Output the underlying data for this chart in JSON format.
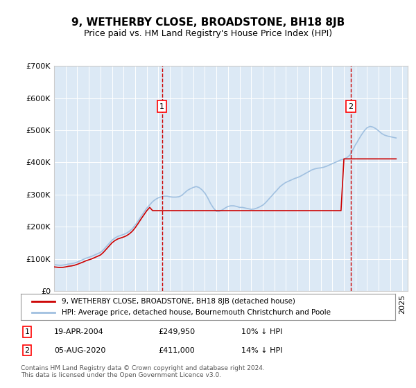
{
  "title": "9, WETHERBY CLOSE, BROADSTONE, BH18 8JB",
  "subtitle": "Price paid vs. HM Land Registry's House Price Index (HPI)",
  "ylabel_ticks": [
    "£0",
    "£100K",
    "£200K",
    "£300K",
    "£400K",
    "£500K",
    "£600K",
    "£700K"
  ],
  "ylim": [
    0,
    700000
  ],
  "yticks": [
    0,
    100000,
    200000,
    300000,
    400000,
    500000,
    600000,
    700000
  ],
  "xlim_start": 1995.0,
  "xlim_end": 2025.5,
  "bg_color": "#dce9f5",
  "plot_bg_color": "#dce9f5",
  "hpi_color": "#a0c0e0",
  "price_color": "#cc0000",
  "legend_label_price": "9, WETHERBY CLOSE, BROADSTONE, BH18 8JB (detached house)",
  "legend_label_hpi": "HPI: Average price, detached house, Bournemouth Christchurch and Poole",
  "sale1_x": 2004.3,
  "sale1_y": 249950,
  "sale1_label": "1",
  "sale1_date": "19-APR-2004",
  "sale1_price": "£249,950",
  "sale1_hpi": "10% ↓ HPI",
  "sale2_x": 2020.58,
  "sale2_y": 411000,
  "sale2_label": "2",
  "sale2_date": "05-AUG-2020",
  "sale2_price": "£411,000",
  "sale2_hpi": "14% ↓ HPI",
  "footer": "Contains HM Land Registry data © Crown copyright and database right 2024.\nThis data is licensed under the Open Government Licence v3.0.",
  "hpi_data_x": [
    1995.0,
    1995.25,
    1995.5,
    1995.75,
    1996.0,
    1996.25,
    1996.5,
    1996.75,
    1997.0,
    1997.25,
    1997.5,
    1997.75,
    1998.0,
    1998.25,
    1998.5,
    1998.75,
    1999.0,
    1999.25,
    1999.5,
    1999.75,
    2000.0,
    2000.25,
    2000.5,
    2000.75,
    2001.0,
    2001.25,
    2001.5,
    2001.75,
    2002.0,
    2002.25,
    2002.5,
    2002.75,
    2003.0,
    2003.25,
    2003.5,
    2003.75,
    2004.0,
    2004.25,
    2004.5,
    2004.75,
    2005.0,
    2005.25,
    2005.5,
    2005.75,
    2006.0,
    2006.25,
    2006.5,
    2006.75,
    2007.0,
    2007.25,
    2007.5,
    2007.75,
    2008.0,
    2008.25,
    2008.5,
    2008.75,
    2009.0,
    2009.25,
    2009.5,
    2009.75,
    2010.0,
    2010.25,
    2010.5,
    2010.75,
    2011.0,
    2011.25,
    2011.5,
    2011.75,
    2012.0,
    2012.25,
    2012.5,
    2012.75,
    2013.0,
    2013.25,
    2013.5,
    2013.75,
    2014.0,
    2014.25,
    2014.5,
    2014.75,
    2015.0,
    2015.25,
    2015.5,
    2015.75,
    2016.0,
    2016.25,
    2016.5,
    2016.75,
    2017.0,
    2017.25,
    2017.5,
    2017.75,
    2018.0,
    2018.25,
    2018.5,
    2018.75,
    2019.0,
    2019.25,
    2019.5,
    2019.75,
    2020.0,
    2020.25,
    2020.5,
    2020.75,
    2021.0,
    2021.25,
    2021.5,
    2021.75,
    2022.0,
    2022.25,
    2022.5,
    2022.75,
    2023.0,
    2023.25,
    2023.5,
    2023.75,
    2024.0,
    2024.25,
    2024.5
  ],
  "hpi_data_y": [
    82000,
    81000,
    80000,
    80500,
    82000,
    84000,
    85000,
    87000,
    90000,
    94000,
    98000,
    102000,
    105000,
    108000,
    112000,
    116000,
    120000,
    128000,
    138000,
    148000,
    158000,
    165000,
    170000,
    173000,
    176000,
    180000,
    186000,
    194000,
    205000,
    218000,
    232000,
    245000,
    258000,
    268000,
    278000,
    285000,
    290000,
    293000,
    295000,
    295000,
    293000,
    292000,
    292000,
    293000,
    297000,
    305000,
    313000,
    318000,
    322000,
    325000,
    322000,
    315000,
    305000,
    290000,
    272000,
    258000,
    248000,
    248000,
    252000,
    258000,
    263000,
    265000,
    265000,
    263000,
    260000,
    260000,
    258000,
    256000,
    254000,
    255000,
    258000,
    262000,
    267000,
    275000,
    285000,
    295000,
    305000,
    315000,
    325000,
    332000,
    338000,
    342000,
    346000,
    350000,
    353000,
    357000,
    362000,
    367000,
    372000,
    377000,
    380000,
    382000,
    383000,
    385000,
    388000,
    392000,
    396000,
    400000,
    404000,
    408000,
    410000,
    415000,
    422000,
    438000,
    455000,
    470000,
    485000,
    498000,
    508000,
    512000,
    510000,
    505000,
    498000,
    490000,
    485000,
    482000,
    480000,
    478000,
    476000
  ],
  "price_data_x": [
    1995.0,
    1995.25,
    1995.5,
    1995.75,
    1996.0,
    1996.25,
    1996.5,
    1996.75,
    1997.0,
    1997.25,
    1997.5,
    1997.75,
    1998.0,
    1998.25,
    1998.5,
    1998.75,
    1999.0,
    1999.25,
    1999.5,
    1999.75,
    2000.0,
    2000.25,
    2000.5,
    2000.75,
    2001.0,
    2001.25,
    2001.5,
    2001.75,
    2002.0,
    2002.25,
    2002.5,
    2002.75,
    2003.0,
    2003.25,
    2003.5,
    2003.75,
    2004.0,
    2004.25,
    2004.5,
    2004.75,
    2005.0,
    2005.25,
    2005.5,
    2005.75,
    2006.0,
    2006.25,
    2006.5,
    2006.75,
    2007.0,
    2007.25,
    2007.5,
    2007.75,
    2008.0,
    2008.25,
    2008.5,
    2008.75,
    2009.0,
    2009.25,
    2009.5,
    2009.75,
    2010.0,
    2010.25,
    2010.5,
    2010.75,
    2011.0,
    2011.25,
    2011.5,
    2011.75,
    2012.0,
    2012.25,
    2012.5,
    2012.75,
    2013.0,
    2013.25,
    2013.5,
    2013.75,
    2014.0,
    2014.25,
    2014.5,
    2014.75,
    2015.0,
    2015.25,
    2015.5,
    2015.75,
    2016.0,
    2016.25,
    2016.5,
    2016.75,
    2017.0,
    2017.25,
    2017.5,
    2017.75,
    2018.0,
    2018.25,
    2018.5,
    2018.75,
    2019.0,
    2019.25,
    2019.5,
    2019.75,
    2020.0,
    2020.25,
    2020.5,
    2020.75,
    2021.0,
    2021.25,
    2021.5,
    2021.75,
    2022.0,
    2022.25,
    2022.5,
    2022.75,
    2023.0,
    2023.25,
    2023.5,
    2023.75,
    2024.0,
    2024.25,
    2024.5
  ],
  "price_data_y": [
    75000,
    74000,
    73000,
    73500,
    75000,
    77000,
    78000,
    80000,
    83000,
    86500,
    90000,
    94000,
    97000,
    100000,
    104000,
    108000,
    112000,
    120000,
    130000,
    140000,
    150000,
    157000,
    162000,
    165000,
    168000,
    172000,
    178000,
    186000,
    197000,
    210000,
    224000,
    237000,
    250000,
    260000,
    249950,
    249950,
    249950,
    249950,
    249950,
    249950,
    249950,
    249950,
    249950,
    249950,
    249950,
    249950,
    249950,
    249950,
    249950,
    249950,
    249950,
    249950,
    249950,
    249950,
    249950,
    249950,
    249950,
    249950,
    249950,
    249950,
    249950,
    249950,
    249950,
    249950,
    249950,
    249950,
    249950,
    249950,
    249950,
    249950,
    249950,
    249950,
    249950,
    249950,
    249950,
    249950,
    249950,
    249950,
    249950,
    249950,
    249950,
    249950,
    249950,
    249950,
    249950,
    249950,
    249950,
    249950,
    249950,
    249950,
    249950,
    249950,
    249950,
    249950,
    249950,
    249950,
    249950,
    249950,
    249950,
    249950,
    411000,
    411000,
    411000,
    411000,
    411000,
    411000,
    411000,
    411000,
    411000,
    411000,
    411000,
    411000,
    411000,
    411000,
    411000,
    411000,
    411000,
    411000,
    411000
  ]
}
